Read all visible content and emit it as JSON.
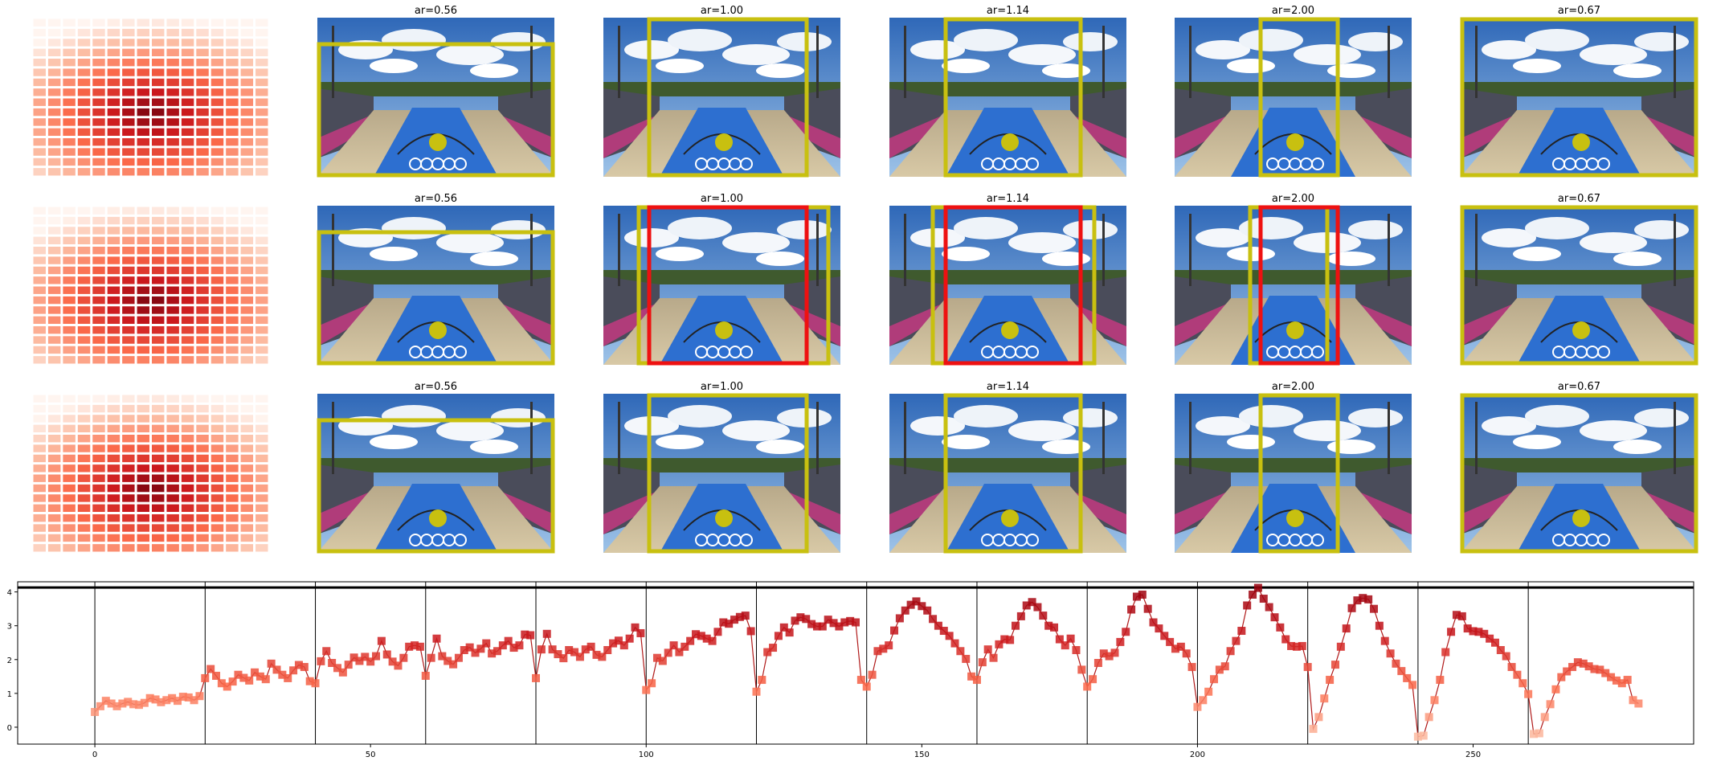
{
  "image_grid": {
    "rows": 3,
    "heatmap_color_scale": [
      "#fff5f0",
      "#fcbba1",
      "#fb6a4a",
      "#cb181d",
      "#67000d"
    ],
    "panels": [
      [
        {
          "title": "",
          "kind": "heatmap"
        },
        {
          "title": "ar=0.56",
          "kind": "photo"
        },
        {
          "title": "ar=1.00",
          "kind": "photo"
        },
        {
          "title": "ar=1.14",
          "kind": "photo"
        },
        {
          "title": "ar=2.00",
          "kind": "photo"
        },
        {
          "title": "ar=0.67",
          "kind": "photo"
        }
      ],
      [
        {
          "title": "",
          "kind": "heatmap"
        },
        {
          "title": "ar=0.56",
          "kind": "photo"
        },
        {
          "title": "ar=1.00",
          "kind": "photo"
        },
        {
          "title": "ar=1.14",
          "kind": "photo"
        },
        {
          "title": "ar=2.00",
          "kind": "photo"
        },
        {
          "title": "ar=0.67",
          "kind": "photo"
        }
      ],
      [
        {
          "title": "",
          "kind": "heatmap"
        },
        {
          "title": "ar=0.56",
          "kind": "photo"
        },
        {
          "title": "ar=1.00",
          "kind": "photo"
        },
        {
          "title": "ar=1.14",
          "kind": "photo"
        },
        {
          "title": "ar=2.00",
          "kind": "photo"
        },
        {
          "title": "ar=0.67",
          "kind": "photo"
        }
      ]
    ],
    "box_colors": {
      "yellow": "#c8c010",
      "red": "#ee1111"
    }
  },
  "chart_data": {
    "type": "line",
    "title": "",
    "xlabel": "",
    "ylabel": "",
    "xlim": [
      -14,
      290
    ],
    "ylim": [
      -0.5,
      4.3
    ],
    "xticks": [
      0,
      50,
      100,
      150,
      200,
      250
    ],
    "yticks": [
      0,
      1,
      2,
      3,
      4
    ],
    "grid": false,
    "segment_boundaries": [
      0,
      20,
      40,
      60,
      80,
      100,
      120,
      140,
      160,
      180,
      200,
      220,
      240,
      260
    ],
    "reference_line_y": 4.13,
    "series": [
      {
        "x_start": 0,
        "values": [
          0.45,
          0.62,
          0.78,
          0.7,
          0.62,
          0.7,
          0.75,
          0.68,
          0.66,
          0.72,
          0.86,
          0.82,
          0.74,
          0.8,
          0.86,
          0.78,
          0.9,
          0.88,
          0.8,
          0.92,
          1.45,
          1.72,
          1.52,
          1.3,
          1.2,
          1.35,
          1.55,
          1.46,
          1.38,
          1.62,
          1.5,
          1.42,
          1.88,
          1.7,
          1.55,
          1.45,
          1.68,
          1.84,
          1.78,
          1.36,
          1.3,
          1.95,
          2.25,
          1.9,
          1.75,
          1.62,
          1.85,
          2.06,
          1.96,
          2.08,
          1.94,
          2.1,
          2.55,
          2.15,
          1.94,
          1.82,
          2.05,
          2.38,
          2.42,
          2.38,
          1.52,
          2.05,
          2.62,
          2.1,
          1.96,
          1.86,
          2.05,
          2.28,
          2.36,
          2.2,
          2.32,
          2.48,
          2.18,
          2.25,
          2.42,
          2.55,
          2.35,
          2.42,
          2.74,
          2.72,
          1.45,
          2.3,
          2.76,
          2.3,
          2.16,
          2.04,
          2.28,
          2.22,
          2.08,
          2.3,
          2.38,
          2.14,
          2.08,
          2.28,
          2.48,
          2.56,
          2.42,
          2.62,
          2.95,
          2.78,
          1.1,
          1.3,
          2.05,
          1.96,
          2.2,
          2.42,
          2.22,
          2.38,
          2.55,
          2.75,
          2.7,
          2.62,
          2.55,
          2.82,
          3.1,
          3.06,
          3.18,
          3.26,
          3.3,
          2.84,
          1.05,
          1.4,
          2.22,
          2.35,
          2.7,
          2.95,
          2.8,
          3.15,
          3.25,
          3.2,
          3.05,
          2.98,
          2.98,
          3.18,
          3.08,
          2.98,
          3.1,
          3.14,
          3.1,
          1.4,
          1.2,
          1.55,
          2.25,
          2.32,
          2.42,
          2.86,
          3.22,
          3.45,
          3.62,
          3.72,
          3.58,
          3.45,
          3.2,
          3.0,
          2.85,
          2.7,
          2.48,
          2.25,
          2.02,
          1.5,
          1.4,
          1.92,
          2.3,
          2.05,
          2.45,
          2.6,
          2.58,
          3.0,
          3.28,
          3.6,
          3.7,
          3.55,
          3.3,
          3.0,
          2.95,
          2.6,
          2.42,
          2.62,
          2.28,
          1.7,
          1.2,
          1.42,
          1.9,
          2.18,
          2.1,
          2.2,
          2.52,
          2.82,
          3.48,
          3.86,
          3.92,
          3.5,
          3.1,
          2.92,
          2.7,
          2.52,
          2.32,
          2.38,
          2.18,
          1.78,
          0.6,
          0.8,
          1.05,
          1.42,
          1.7,
          1.8,
          2.25,
          2.55,
          2.85,
          3.6,
          3.92,
          4.12,
          3.8,
          3.55,
          3.25,
          2.95,
          2.6,
          2.4,
          2.38,
          2.4,
          1.78,
          -0.05,
          0.3,
          0.85,
          1.4,
          1.85,
          2.38,
          2.92,
          3.52,
          3.75,
          3.82,
          3.78,
          3.5,
          3.0,
          2.55,
          2.18,
          1.88,
          1.66,
          1.45,
          1.25,
          -0.28,
          -0.25,
          0.3,
          0.8,
          1.4,
          2.22,
          2.82,
          3.32,
          3.28,
          2.92,
          2.84,
          2.82,
          2.76,
          2.62,
          2.5,
          2.28,
          2.1,
          1.78,
          1.55,
          1.3,
          0.98,
          -0.2,
          -0.18,
          0.3,
          0.68,
          1.12,
          1.48,
          1.65,
          1.78,
          1.92,
          1.88,
          1.8,
          1.72,
          1.7,
          1.6,
          1.48,
          1.38,
          1.3,
          1.4,
          0.8,
          0.7
        ]
      }
    ]
  }
}
